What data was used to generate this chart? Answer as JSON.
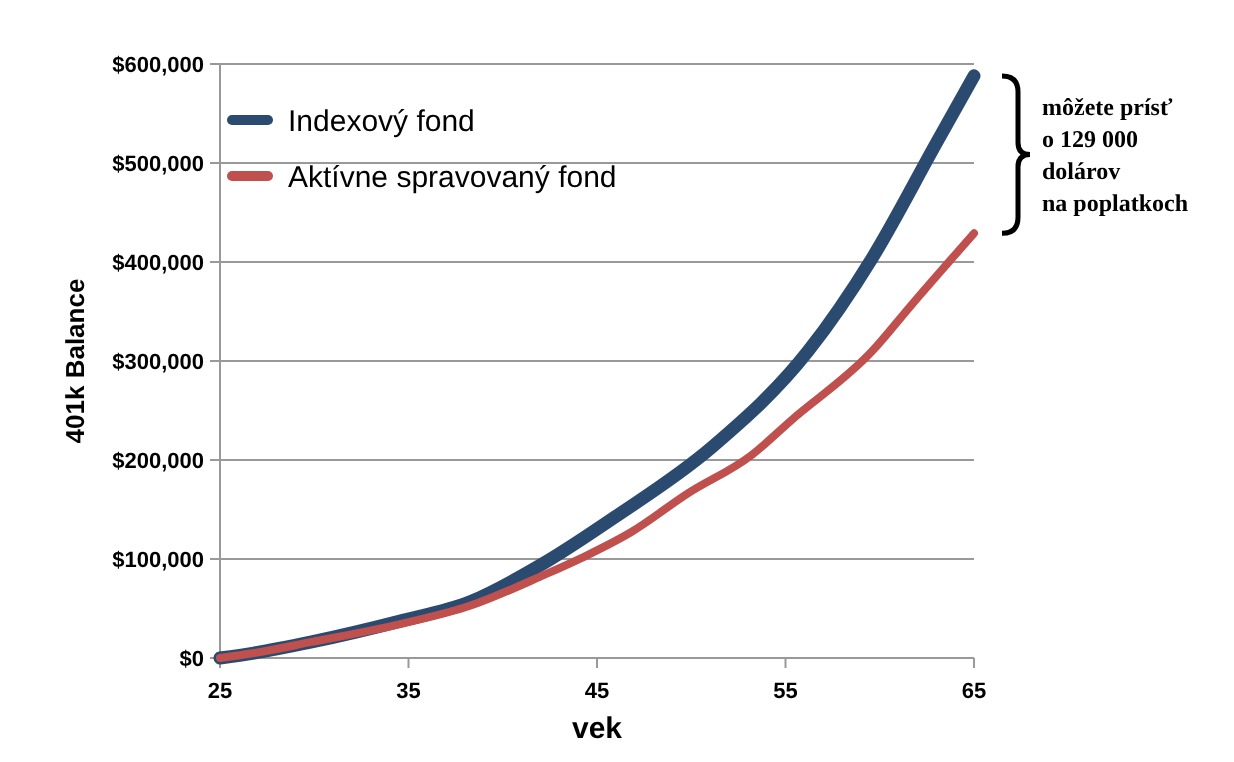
{
  "chart_data": {
    "type": "line",
    "ylabel": "401k Balance",
    "xlabel": "vek",
    "xlim": [
      25,
      65
    ],
    "xticks": [
      25,
      35,
      45,
      55,
      65
    ],
    "ylim": [
      0,
      600000
    ],
    "yticks": [
      {
        "value": 0,
        "label": "$0"
      },
      {
        "value": 100000,
        "label": "$100,000"
      },
      {
        "value": 200000,
        "label": "$200,000"
      },
      {
        "value": 300000,
        "label": "$300,000"
      },
      {
        "value": 400000,
        "label": "$400,000"
      },
      {
        "value": 500000,
        "label": "$500,000"
      },
      {
        "value": 600000,
        "label": "$600,000"
      }
    ],
    "grid": "y",
    "legend": "top left",
    "line_style": "solid",
    "marker": "none",
    "series": [
      {
        "name": "Indexový fond",
        "color": "#2b4a6f",
        "x": [
          25,
          26.8,
          29.8,
          34.5,
          38.3,
          42.2,
          46,
          51.1,
          56.2,
          59.6,
          63,
          65
        ],
        "values": [
          0,
          5000,
          16000,
          37000,
          57000,
          96000,
          143000,
          213000,
          310000,
          404000,
          520000,
          588000
        ]
      },
      {
        "name": "Aktívne spravovaný fond",
        "color": "#c0504d",
        "x": [
          25,
          26.8,
          29.8,
          34.5,
          38.3,
          42.2,
          44.5,
          46.8,
          49.8,
          53.2,
          55.3,
          59.6,
          61.7,
          65
        ],
        "values": [
          0,
          5000,
          16000,
          34000,
          53000,
          84000,
          104000,
          127000,
          166000,
          205000,
          240000,
          310000,
          357000,
          429000
        ]
      }
    ],
    "annotations": [
      "môžete prísť\no 129 000\ndolárov\nna poplatkoch"
    ]
  }
}
